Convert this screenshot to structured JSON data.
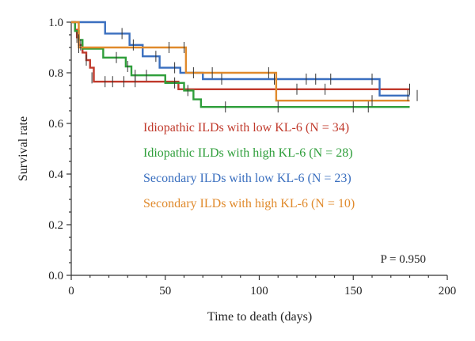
{
  "chart_data": {
    "type": "line",
    "title": "",
    "xlabel": "Time to death (days)",
    "ylabel": "Survival rate",
    "xlim": [
      0,
      200
    ],
    "ylim": [
      0,
      1.0
    ],
    "x_ticks": [
      0,
      50,
      100,
      150,
      200
    ],
    "x_tick_labels": [
      "0",
      "50",
      "100",
      "150",
      "200"
    ],
    "y_ticks": [
      0.0,
      0.2,
      0.4,
      0.6,
      0.8,
      1.0
    ],
    "y_tick_labels": [
      "0.0",
      "0.2",
      "0.4",
      "0.6",
      "0.8",
      "1.0"
    ],
    "grid": false,
    "legend_placement": "center",
    "annotation": "P = 0.950",
    "series": [
      {
        "name": "Idiopathic ILDs with low KL-6 (N = 34)",
        "color": "#c0392b",
        "steps": [
          [
            0,
            1.0
          ],
          [
            2,
            0.97
          ],
          [
            3,
            0.94
          ],
          [
            4,
            0.91
          ],
          [
            6,
            0.88
          ],
          [
            8,
            0.85
          ],
          [
            10,
            0.82
          ],
          [
            12,
            0.765
          ],
          [
            57,
            0.735
          ],
          [
            108,
            0.735
          ],
          [
            180,
            0.735
          ]
        ],
        "censored": [
          [
            3,
            0.94
          ],
          [
            5,
            0.91
          ],
          [
            8,
            0.85
          ],
          [
            11,
            0.78
          ],
          [
            18,
            0.765
          ],
          [
            22,
            0.765
          ],
          [
            28,
            0.765
          ],
          [
            34,
            0.765
          ],
          [
            120,
            0.735
          ],
          [
            135,
            0.735
          ],
          [
            180,
            0.735
          ]
        ]
      },
      {
        "name": "Idiopathic ILDs with high KL-6 (N = 28)",
        "color": "#2e9e3a",
        "steps": [
          [
            0,
            1.0
          ],
          [
            2,
            0.965
          ],
          [
            4,
            0.93
          ],
          [
            6,
            0.895
          ],
          [
            17,
            0.86
          ],
          [
            29,
            0.825
          ],
          [
            32,
            0.79
          ],
          [
            50,
            0.76
          ],
          [
            60,
            0.73
          ],
          [
            65,
            0.695
          ],
          [
            69,
            0.665
          ],
          [
            180,
            0.665
          ]
        ],
        "censored": [
          [
            4,
            0.93
          ],
          [
            24,
            0.86
          ],
          [
            30,
            0.825
          ],
          [
            34,
            0.79
          ],
          [
            40,
            0.79
          ],
          [
            55,
            0.76
          ],
          [
            62,
            0.73
          ],
          [
            82,
            0.665
          ],
          [
            110,
            0.665
          ],
          [
            150,
            0.665
          ],
          [
            158,
            0.665
          ]
        ]
      },
      {
        "name": "Secondary ILDs with low KL-6 (N = 23)",
        "color": "#3a6fbf",
        "steps": [
          [
            0,
            1.0
          ],
          [
            18,
            0.955
          ],
          [
            31,
            0.91
          ],
          [
            38,
            0.865
          ],
          [
            47,
            0.82
          ],
          [
            58,
            0.8
          ],
          [
            70,
            0.775
          ],
          [
            163,
            0.775
          ],
          [
            164,
            0.71
          ],
          [
            180,
            0.71
          ]
        ],
        "censored": [
          [
            27,
            0.955
          ],
          [
            33,
            0.91
          ],
          [
            45,
            0.865
          ],
          [
            55,
            0.82
          ],
          [
            65,
            0.8
          ],
          [
            80,
            0.775
          ],
          [
            108,
            0.775
          ],
          [
            125,
            0.775
          ],
          [
            130,
            0.775
          ],
          [
            138,
            0.775
          ],
          [
            160,
            0.775
          ],
          [
            179,
            0.71
          ],
          [
            184,
            0.71
          ]
        ]
      },
      {
        "name": "Secondary ILDs with high KL-6 (N = 10)",
        "color": "#e08a2c",
        "steps": [
          [
            0,
            1.0
          ],
          [
            4,
            0.9
          ],
          [
            60,
            0.9
          ],
          [
            61,
            0.8
          ],
          [
            108,
            0.8
          ],
          [
            109,
            0.69
          ],
          [
            180,
            0.69
          ]
        ],
        "censored": [
          [
            4,
            0.9
          ],
          [
            52,
            0.9
          ],
          [
            60,
            0.9
          ],
          [
            75,
            0.8
          ],
          [
            105,
            0.8
          ],
          [
            160,
            0.69
          ]
        ]
      }
    ]
  }
}
